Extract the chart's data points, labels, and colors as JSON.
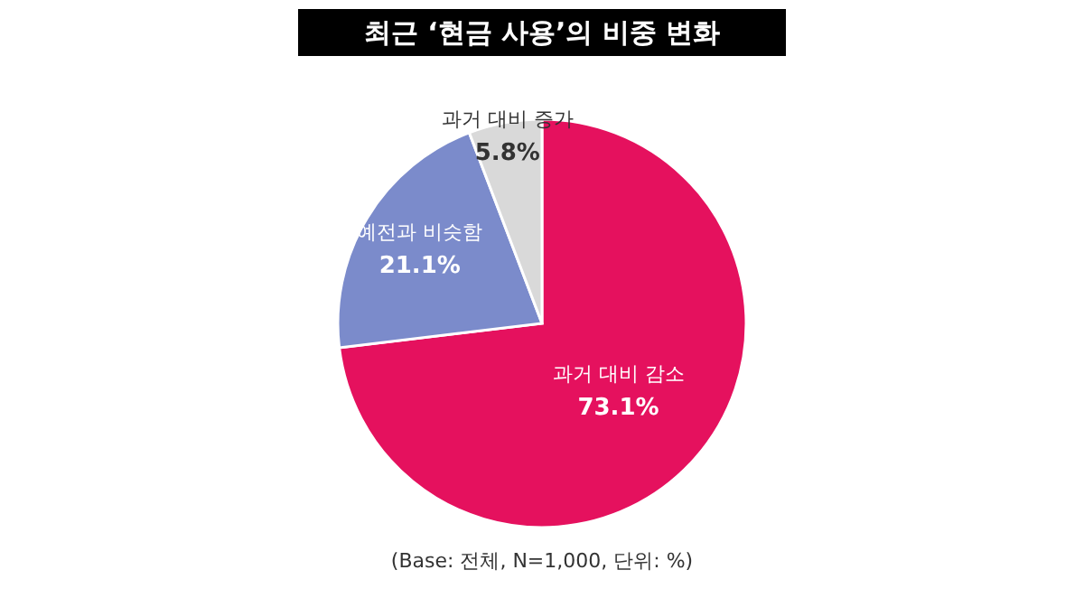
{
  "chart_data": {
    "type": "pie",
    "title": "최근 ‘현금 사용’의 비중 변화",
    "categories": [
      "과거 대비 감소",
      "예전과 비슷함",
      "과거 대비 증가"
    ],
    "values": [
      73.1,
      21.1,
      5.8
    ],
    "colors": [
      "#e5115e",
      "#7b8bcb",
      "#d9d9d9"
    ],
    "value_labels": [
      "73.1%",
      "21.1%",
      "5.8%"
    ],
    "annotations": [
      "(Base: 전체, N=1,000, 단위: %)"
    ]
  }
}
